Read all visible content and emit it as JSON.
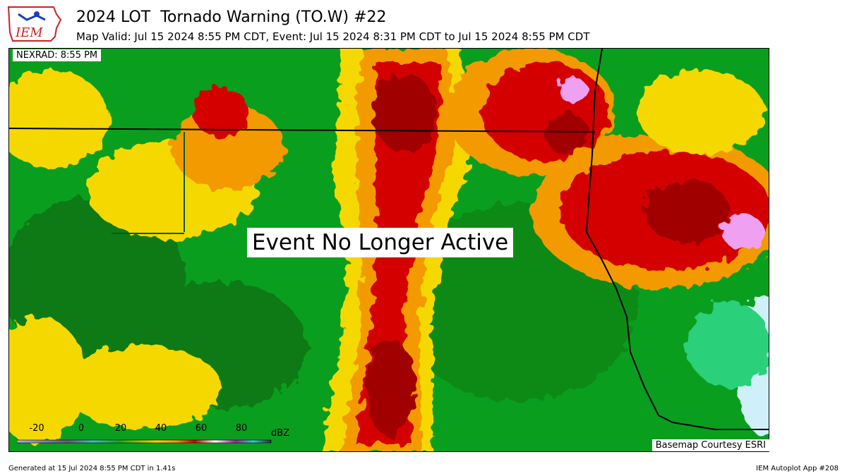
{
  "header": {
    "title": "2024 LOT  Tornado Warning (TO.W) #22",
    "subtitle": "Map Valid: Jul 15 2024 8:55 PM CDT, Event: Jul 15 2024 8:31 PM CDT to Jul 15 2024 8:55 PM CDT",
    "logo_text": "IEM"
  },
  "map": {
    "nexrad_label": "NEXRAD: 8:55 PM",
    "status_banner": "Event No Longer Active",
    "basemap_credit": "Basemap Courtesy ESRI",
    "colors": {
      "green_dark": "#0a7a14",
      "green": "#10b21e",
      "yellow": "#f5d800",
      "orange": "#f39a00",
      "red": "#d40000",
      "darkred": "#a00000",
      "pink": "#f0a0f0",
      "cyan": "#cff0f8"
    }
  },
  "colorbar": {
    "ticks": [
      "-20",
      "0",
      "20",
      "40",
      "60",
      "80"
    ],
    "unit": "dBZ"
  },
  "footer": {
    "generated": "Generated at 15 Jul 2024 8:55 PM CDT in 1.41s",
    "app": "IEM Autoplot App #208"
  }
}
